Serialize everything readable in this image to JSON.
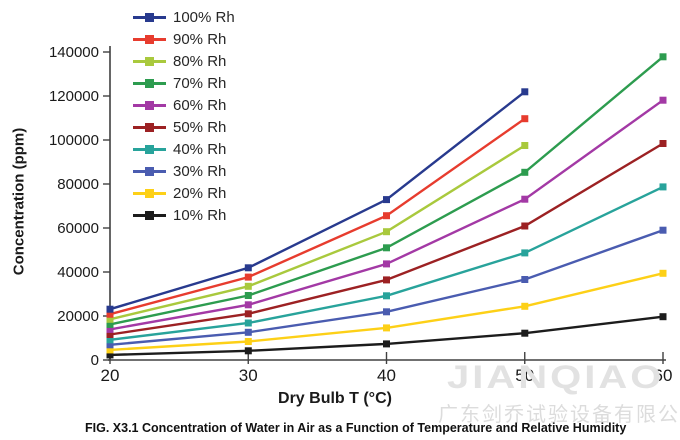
{
  "figure": {
    "caption": "FIG. X3.1 Concentration of Water in Air as a Function of Temperature and Relative Humidity"
  },
  "watermark": {
    "line1": "JIANQIAO",
    "line2": "广东剑乔试验设备有限公司",
    "color": "#e2e2e2"
  },
  "chart_data": {
    "type": "line",
    "title": "",
    "xlabel": "Dry Bulb T (°C)",
    "ylabel": "Concentration (ppm)",
    "x": [
      20,
      30,
      40,
      50,
      60
    ],
    "xticks": [
      20,
      30,
      40,
      50,
      60
    ],
    "yticks": [
      0,
      20000,
      40000,
      60000,
      80000,
      100000,
      120000,
      140000
    ],
    "xlim": [
      20,
      60
    ],
    "ylim": [
      0,
      140000
    ],
    "grid": false,
    "legend_position": "top-left",
    "marker": "square",
    "series": [
      {
        "name": "100% Rh",
        "color": "#283A8E",
        "values": [
          23100,
          41900,
          72900,
          121900,
          null
        ]
      },
      {
        "name": "90% Rh",
        "color": "#E73C2E",
        "values": [
          20800,
          37700,
          65600,
          109700,
          null
        ]
      },
      {
        "name": "80% Rh",
        "color": "#A9C93D",
        "values": [
          18500,
          33500,
          58300,
          97500,
          null
        ]
      },
      {
        "name": "70% Rh",
        "color": "#2D9C4F",
        "values": [
          16200,
          29300,
          51000,
          85300,
          137800
        ]
      },
      {
        "name": "60% Rh",
        "color": "#A339A5",
        "values": [
          13900,
          25100,
          43700,
          73100,
          118100
        ]
      },
      {
        "name": "50% Rh",
        "color": "#9C2123",
        "values": [
          11600,
          21000,
          36400,
          60900,
          98400
        ]
      },
      {
        "name": "40% Rh",
        "color": "#28A39B",
        "values": [
          9200,
          16800,
          29200,
          48700,
          78700
        ]
      },
      {
        "name": "30% Rh",
        "color": "#4A5CB0",
        "values": [
          6900,
          12600,
          21900,
          36600,
          59000
        ]
      },
      {
        "name": "20% Rh",
        "color": "#FDD017",
        "values": [
          4600,
          8400,
          14600,
          24400,
          39400
        ]
      },
      {
        "name": "10% Rh",
        "color": "#1C1C1C",
        "values": [
          2300,
          4200,
          7300,
          12200,
          19700
        ]
      }
    ]
  }
}
